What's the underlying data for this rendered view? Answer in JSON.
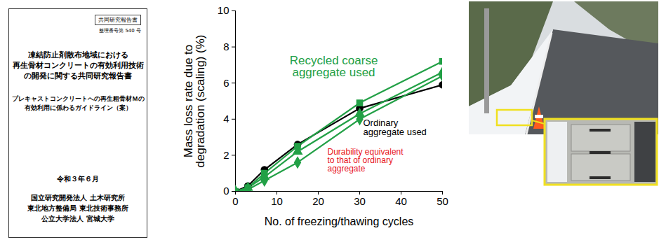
{
  "document": {
    "header_box": "共同研究報告書",
    "number": "整理番号第 540 号",
    "title_lines": [
      "凍結防止剤散布地域における",
      "再生骨材コンクリートの有効利用技術",
      "の開発に関する共同研究報告書"
    ],
    "subtitle_lines": [
      "プレキャストコンクリートへの再生粗骨材Ｍの",
      "有効利用に係わるガイドライン（案）"
    ],
    "date": "令和３年６月",
    "organizations": [
      "国立研究開発法人 土木研究所",
      "東北地方整備局 東北技術事務所",
      "公立大学法人 宮城大学"
    ]
  },
  "chart_data": {
    "type": "line",
    "x": [
      0,
      3,
      7,
      15,
      30,
      50
    ],
    "series": [
      {
        "color": "#000000",
        "marker": "circle",
        "values": [
          0,
          0.3,
          1.2,
          2.6,
          4.6,
          5.9
        ]
      },
      {
        "color": "#22a046",
        "marker": "square",
        "values": [
          0,
          0.2,
          1.0,
          2.5,
          4.9,
          7.2
        ]
      },
      {
        "color": "#22a046",
        "marker": "triangle",
        "values": [
          0,
          0.2,
          0.8,
          2.2,
          4.3,
          6.6
        ]
      },
      {
        "color": "#22a046",
        "marker": "diamond",
        "values": [
          0,
          0.1,
          0.6,
          1.6,
          4.0,
          6.4
        ]
      }
    ],
    "xlim": [
      0,
      50
    ],
    "xticks": [
      0,
      10,
      20,
      30,
      40,
      50
    ],
    "ylim": [
      0,
      10
    ],
    "yticks": [
      0,
      2,
      4,
      6,
      8,
      10
    ],
    "x_label": "No. of freezing/thawing cycles",
    "y_label": "Mass loss rate due to degradation (scaling) (%)",
    "grid": false,
    "annotations": [
      {
        "text": "Recycled coarse aggregate used",
        "color": "#22a046"
      },
      {
        "text": "Ordinary aggregate used",
        "color": "#000000"
      },
      {
        "text": "Durability equivalent to that of ordinary aggregate",
        "color": "#e8141c"
      }
    ]
  }
}
